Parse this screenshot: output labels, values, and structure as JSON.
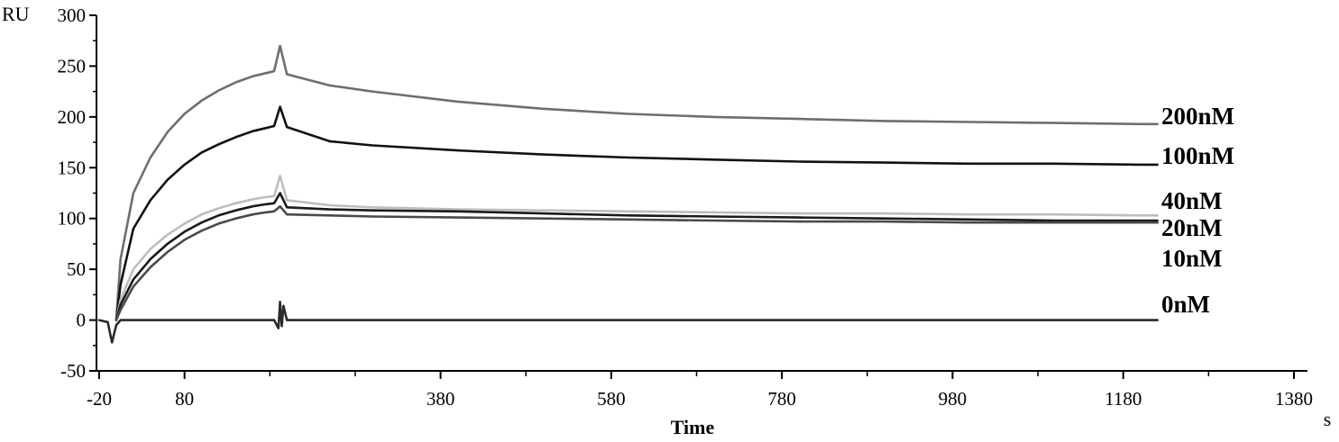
{
  "chart_data": {
    "type": "line",
    "xlabel": "Time",
    "xunit": "s",
    "ylabel": "RU",
    "xlim": [
      -20,
      1380
    ],
    "ylim": [
      -50,
      300
    ],
    "x_ticks": [
      -20,
      80,
      380,
      580,
      780,
      980,
      1180,
      1380
    ],
    "x_ticks_labels": [
      "-20",
      "80",
      "380",
      "580",
      "780",
      "980",
      "1180",
      "1380"
    ],
    "x_minor_ticks": [
      180,
      280,
      480,
      680,
      880,
      1080,
      1280
    ],
    "y_ticks": [
      -50,
      0,
      50,
      100,
      150,
      200,
      250,
      300
    ],
    "y_ticks_labels": [
      "-50",
      "0",
      "50",
      "100",
      "150",
      "200",
      "250",
      "300"
    ],
    "grid": false,
    "series": [
      {
        "name": "200nM",
        "color": "#6e6e6e",
        "x": [
          0,
          5,
          20,
          40,
          60,
          80,
          100,
          120,
          140,
          160,
          175,
          185,
          192,
          200,
          250,
          300,
          400,
          500,
          600,
          700,
          800,
          900,
          1000,
          1100,
          1200,
          1220
        ],
        "y": [
          0,
          60,
          125,
          160,
          185,
          203,
          216,
          226,
          234,
          240,
          243,
          245,
          270,
          242,
          231,
          225,
          215,
          208,
          203,
          200,
          198,
          196,
          195,
          194,
          193,
          193
        ]
      },
      {
        "name": "100nM",
        "color": "#111111",
        "x": [
          0,
          5,
          20,
          40,
          60,
          80,
          100,
          120,
          140,
          160,
          175,
          185,
          192,
          200,
          250,
          300,
          400,
          500,
          600,
          700,
          800,
          900,
          1000,
          1100,
          1200,
          1220
        ],
        "y": [
          0,
          35,
          90,
          118,
          138,
          153,
          165,
          173,
          180,
          186,
          189,
          191,
          210,
          190,
          176,
          172,
          167,
          163,
          160,
          158,
          156,
          155,
          154,
          154,
          153,
          153
        ]
      },
      {
        "name": "40nM",
        "color": "#bdbdbd",
        "x": [
          0,
          5,
          20,
          40,
          60,
          80,
          100,
          120,
          140,
          160,
          175,
          185,
          192,
          200,
          250,
          300,
          400,
          500,
          600,
          700,
          800,
          900,
          1000,
          1100,
          1200,
          1220
        ],
        "y": [
          0,
          20,
          50,
          70,
          84,
          95,
          104,
          110,
          115,
          119,
          121,
          122,
          142,
          118,
          113,
          111,
          109,
          108,
          107,
          106,
          105,
          105,
          104,
          104,
          103,
          103
        ]
      },
      {
        "name": "20nM",
        "color": "#1a1a1a",
        "x": [
          0,
          5,
          20,
          40,
          60,
          80,
          100,
          120,
          140,
          160,
          175,
          185,
          192,
          200,
          250,
          300,
          400,
          500,
          600,
          700,
          800,
          900,
          1000,
          1100,
          1200,
          1220
        ],
        "y": [
          0,
          15,
          40,
          60,
          75,
          87,
          96,
          103,
          108,
          112,
          114,
          115,
          125,
          111,
          109,
          108,
          107,
          105,
          103,
          102,
          101,
          100,
          99,
          98,
          98,
          98
        ]
      },
      {
        "name": "10nM",
        "color": "#4a4a4a",
        "x": [
          0,
          5,
          20,
          40,
          60,
          80,
          100,
          120,
          140,
          160,
          175,
          185,
          192,
          200,
          250,
          300,
          400,
          500,
          600,
          700,
          800,
          900,
          1000,
          1100,
          1200,
          1220
        ],
        "y": [
          0,
          10,
          33,
          52,
          67,
          79,
          88,
          95,
          100,
          104,
          106,
          107,
          112,
          104,
          103,
          102,
          101,
          100,
          99,
          98,
          97,
          97,
          96,
          96,
          96,
          96
        ]
      },
      {
        "name": "0nM",
        "color": "#2a2a2a",
        "x": [
          -20,
          -10,
          -5,
          0,
          5,
          20,
          100,
          185,
          190,
          192,
          194,
          196,
          200,
          400,
          600,
          800,
          1000,
          1200,
          1220
        ],
        "y": [
          0,
          -2,
          -22,
          -5,
          0,
          0,
          0,
          0,
          -8,
          18,
          -6,
          14,
          0,
          0,
          0,
          0,
          0,
          0,
          0
        ]
      }
    ]
  }
}
